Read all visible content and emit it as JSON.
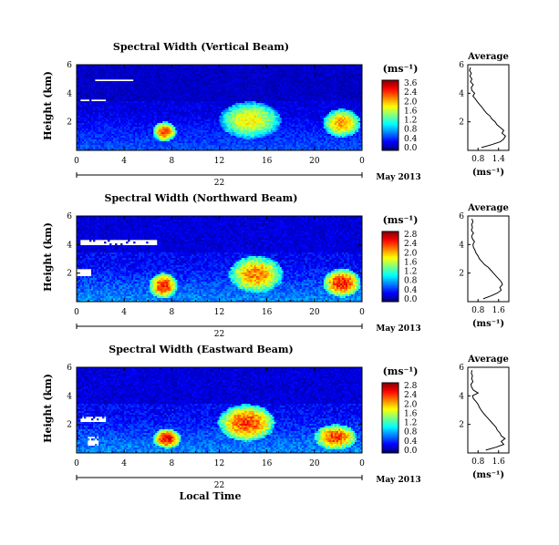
{
  "chart_data": [
    {
      "type": "heatmap",
      "title": "Spectral Width (Vertical Beam)",
      "ylabel": "Height (km)",
      "x_ticks": [
        "0",
        "4",
        "8",
        "12",
        "16",
        "20",
        "0"
      ],
      "xlim": [
        0,
        24
      ],
      "ylim": [
        0,
        6
      ],
      "y_ticks": [
        "2",
        "4",
        "6"
      ],
      "date_day": "22",
      "date_label": "May 2013",
      "colorbar": {
        "unit": "(ms⁻¹)",
        "ticks": [
          "3.6",
          "2.4",
          "2.0",
          "1.6",
          "1.2",
          "0.8",
          "0.4",
          "0.0"
        ],
        "range": [
          0,
          3.6
        ]
      },
      "missing_blocks": [
        [
          0.5,
          6.3,
          4.3,
          6.0
        ],
        [
          0.3,
          3.6,
          2.6,
          3.5
        ],
        [
          1.5,
          5.0,
          4.8,
          4.9
        ]
      ],
      "hot_spots": [
        [
          7.4,
          1.3,
          1.0,
          0.7,
          2.9
        ],
        [
          14.6,
          2.1,
          2.6,
          1.3,
          2.3
        ],
        [
          22.3,
          1.9,
          1.6,
          1.0,
          2.6
        ]
      ],
      "profile": {
        "title": "Average",
        "xlabel": "(ms⁻¹)",
        "x_ticks": [
          "0.8",
          "1.4"
        ],
        "xlim": [
          0.5,
          1.7
        ],
        "ylim": [
          0,
          6
        ],
        "y_ticks": [
          "2",
          "4",
          "6"
        ],
        "heights": [
          0.2,
          0.4,
          0.6,
          0.8,
          1.0,
          1.2,
          1.4,
          1.6,
          1.8,
          2.0,
          2.2,
          2.4,
          2.6,
          2.8,
          3.0,
          3.2,
          3.4,
          3.6,
          3.8,
          4.0,
          4.2,
          4.4,
          4.6,
          4.8,
          5.0,
          5.2,
          5.4,
          5.6,
          5.8
        ],
        "values": [
          0.9,
          1.2,
          1.45,
          1.55,
          1.6,
          1.5,
          1.55,
          1.45,
          1.35,
          1.3,
          1.2,
          1.15,
          1.05,
          0.98,
          0.92,
          0.85,
          0.78,
          0.72,
          0.65,
          0.7,
          0.62,
          0.6,
          0.66,
          0.58,
          0.62,
          0.56,
          0.6,
          0.55,
          0.58
        ]
      }
    },
    {
      "type": "heatmap",
      "title": "Spectral Width (Northward Beam)",
      "ylabel": "Height (km)",
      "x_ticks": [
        "0",
        "4",
        "8",
        "12",
        "16",
        "20",
        "0"
      ],
      "xlim": [
        0,
        24
      ],
      "ylim": [
        0,
        6
      ],
      "y_ticks": [
        "2",
        "4",
        "6"
      ],
      "date_day": "22",
      "date_label": "May 2013",
      "colorbar": {
        "unit": "(ms⁻¹)",
        "ticks": [
          "2.8",
          "2.4",
          "2.0",
          "1.6",
          "1.2",
          "0.8",
          "0.4",
          "0.0"
        ],
        "range": [
          0,
          2.8
        ]
      },
      "missing_blocks": [
        [
          0.0,
          6.0,
          6.8,
          6.0
        ],
        [
          0.3,
          4.3,
          6.8,
          4.0
        ],
        [
          0.0,
          2.3,
          1.2,
          1.8
        ]
      ],
      "hot_spots": [
        [
          7.3,
          1.1,
          1.2,
          0.9,
          2.4
        ],
        [
          15.1,
          1.9,
          2.3,
          1.3,
          2.1
        ],
        [
          22.3,
          1.3,
          1.6,
          1.0,
          2.4
        ]
      ],
      "profile": {
        "title": "Average",
        "xlabel": "(ms⁻¹)",
        "x_ticks": [
          "0.8",
          "1.6"
        ],
        "xlim": [
          0.4,
          2.0
        ],
        "ylim": [
          0,
          6
        ],
        "y_ticks": [
          "2",
          "4",
          "6"
        ],
        "heights": [
          0.2,
          0.4,
          0.6,
          0.8,
          1.0,
          1.2,
          1.4,
          1.6,
          1.8,
          2.0,
          2.2,
          2.4,
          2.6,
          2.8,
          3.0,
          3.2,
          3.4,
          3.6,
          3.8,
          4.0,
          4.2,
          4.4,
          4.6,
          4.8,
          5.0,
          5.2,
          5.4,
          5.6,
          5.8
        ],
        "values": [
          1.0,
          1.3,
          1.55,
          1.7,
          1.65,
          1.75,
          1.7,
          1.6,
          1.5,
          1.4,
          1.3,
          1.2,
          1.05,
          0.95,
          0.85,
          0.8,
          0.72,
          0.68,
          0.62,
          0.6,
          0.66,
          0.58,
          0.55,
          0.62,
          0.54,
          0.58,
          0.55,
          0.6,
          0.56
        ]
      }
    },
    {
      "type": "heatmap",
      "title": "Spectral Width (Eastward Beam)",
      "ylabel": "Height (km)",
      "x_ticks": [
        "0",
        "4",
        "8",
        "12",
        "16",
        "20",
        "0"
      ],
      "xlim": [
        0,
        24
      ],
      "ylim": [
        0,
        6
      ],
      "y_ticks": [
        "2",
        "4",
        "6"
      ],
      "date_day": "22",
      "date_label": "May 2013",
      "xlabel": "Local Time",
      "colorbar": {
        "unit": "(ms⁻¹)",
        "ticks": [
          "2.8",
          "2.4",
          "2.0",
          "1.6",
          "1.2",
          "0.8",
          "0.4",
          "0.0"
        ],
        "range": [
          0,
          2.8
        ]
      },
      "missing_blocks": [
        [
          0.6,
          6.0,
          5.8,
          6.0
        ],
        [
          0.3,
          2.6,
          2.5,
          2.2
        ],
        [
          1.0,
          1.2,
          1.8,
          0.5
        ]
      ],
      "hot_spots": [
        [
          7.6,
          1.0,
          1.2,
          0.7,
          2.5
        ],
        [
          14.3,
          2.1,
          2.4,
          1.3,
          2.3
        ],
        [
          21.8,
          1.1,
          1.8,
          0.9,
          2.3
        ]
      ],
      "profile": {
        "title": "Average",
        "xlabel": "(ms⁻¹)",
        "x_ticks": [
          "0.8",
          "1.6"
        ],
        "xlim": [
          0.4,
          2.0
        ],
        "ylim": [
          0,
          6
        ],
        "y_ticks": [
          "2",
          "4",
          "6"
        ],
        "heights": [
          0.2,
          0.4,
          0.6,
          0.8,
          1.0,
          1.2,
          1.4,
          1.6,
          1.8,
          2.0,
          2.2,
          2.4,
          2.6,
          2.8,
          3.0,
          3.2,
          3.4,
          3.6,
          3.8,
          4.0,
          4.2,
          4.4,
          4.6,
          4.8,
          5.0,
          5.2,
          5.4,
          5.6,
          5.8
        ],
        "values": [
          1.1,
          1.5,
          1.8,
          1.7,
          1.85,
          1.7,
          1.65,
          1.55,
          1.5,
          1.4,
          1.3,
          1.2,
          1.1,
          1.0,
          0.92,
          0.85,
          0.8,
          0.72,
          0.62,
          0.58,
          0.8,
          0.62,
          0.55,
          0.52,
          0.6,
          0.55,
          0.58,
          0.54,
          0.56
        ]
      }
    }
  ]
}
